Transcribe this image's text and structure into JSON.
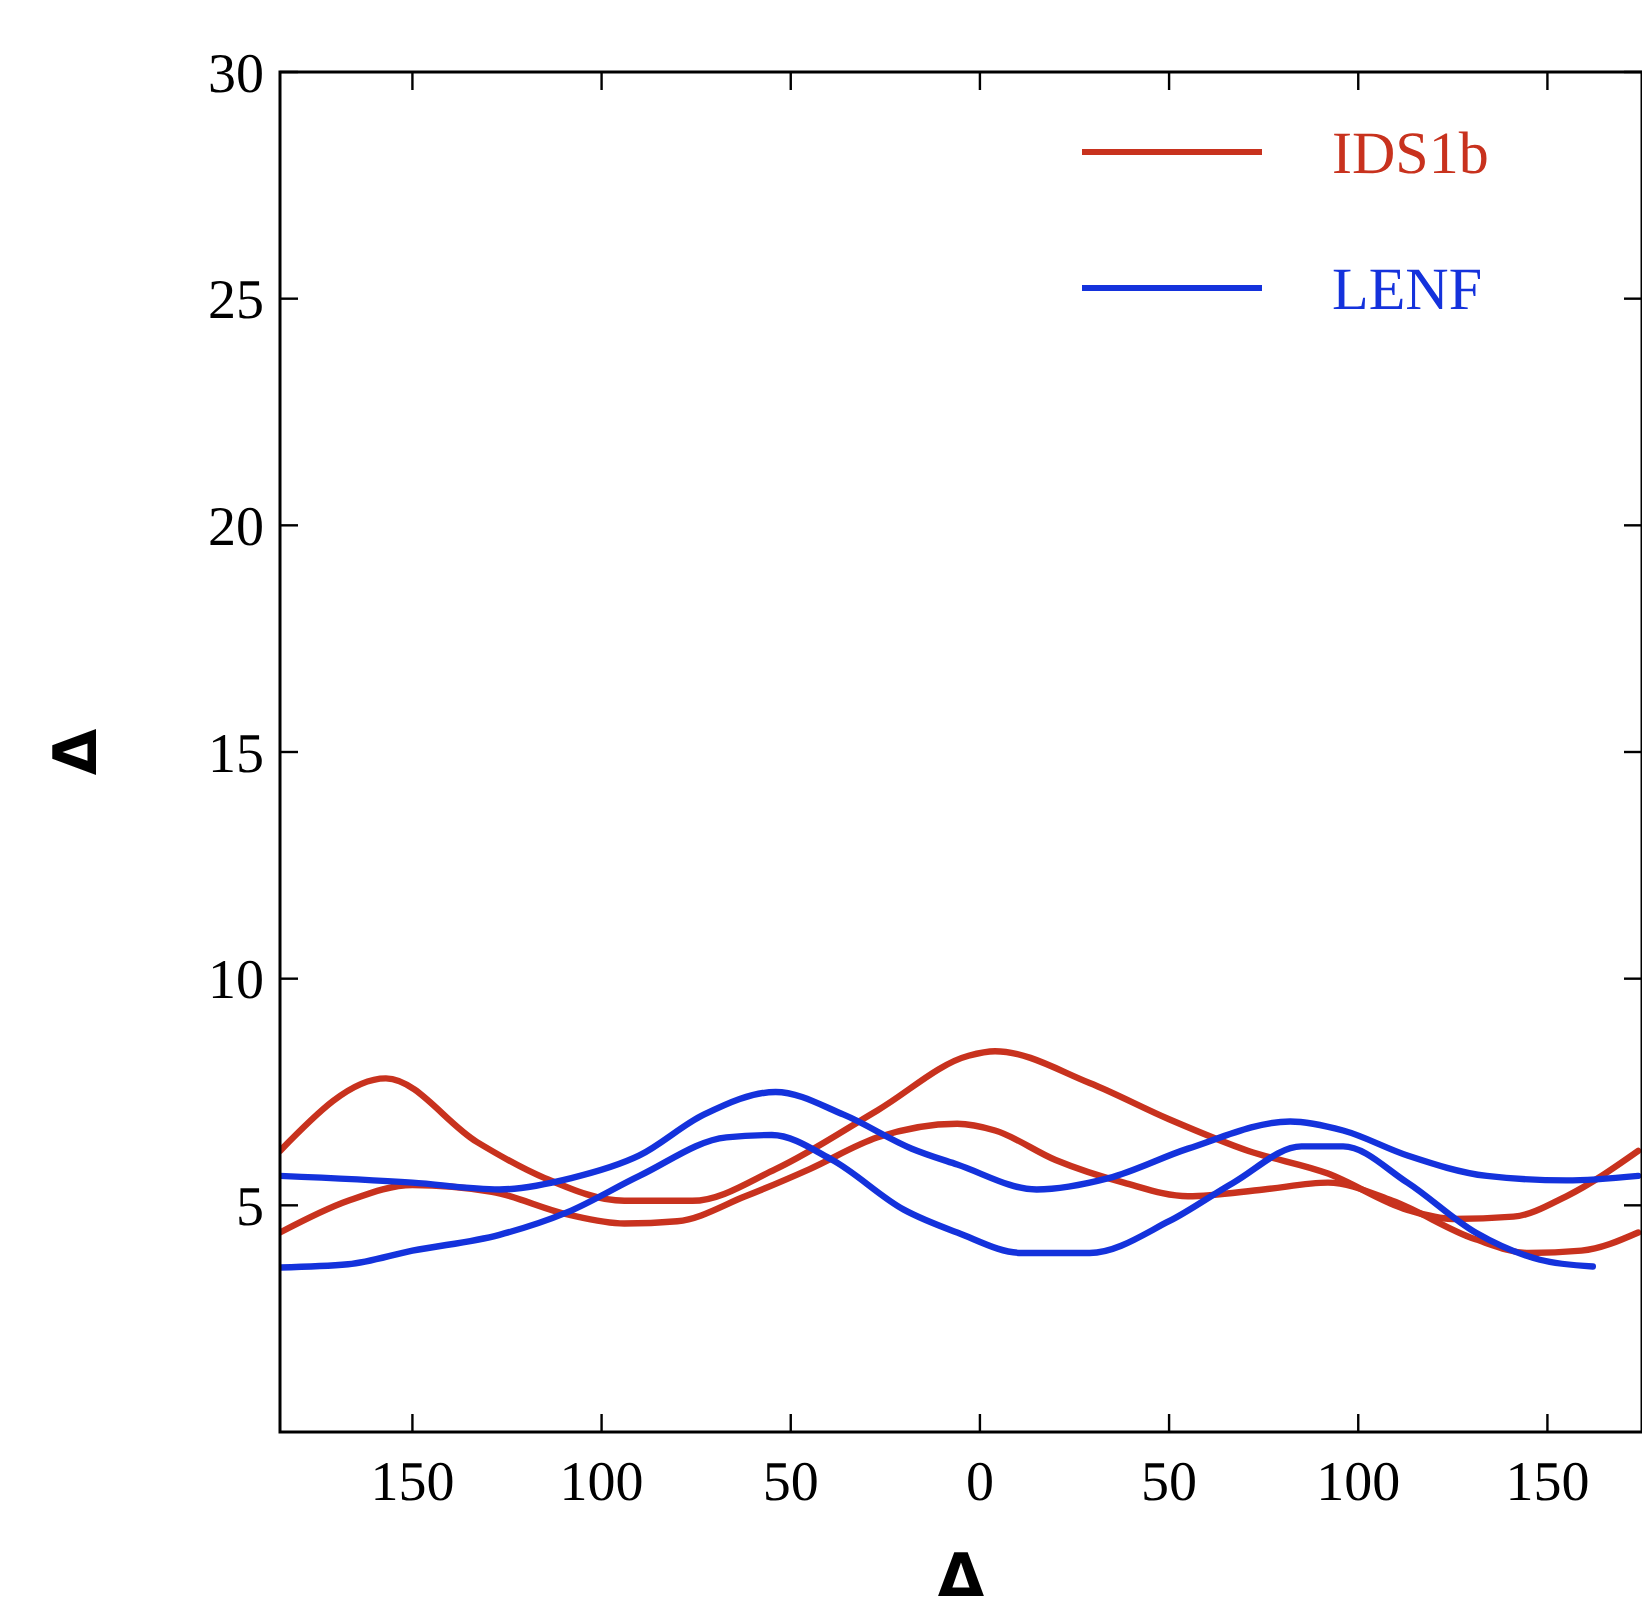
{
  "chart_data": {
    "type": "line",
    "xlabel": "Δ",
    "ylabel": "Δ",
    "xlim": [
      -185,
      175
    ],
    "ylim": [
      0,
      30
    ],
    "xticks": [
      {
        "value": -150,
        "label": "150"
      },
      {
        "value": -100,
        "label": "100"
      },
      {
        "value": -50,
        "label": "50"
      },
      0,
      50,
      100,
      150
    ],
    "yticks": [
      5,
      10,
      15,
      20,
      25,
      30
    ],
    "legend": "top right",
    "grid": false,
    "series": [
      {
        "name": "IDS1b",
        "color": "#c8321e",
        "x": [
          -185,
          -157,
          -133,
          -115,
          -94,
          -76,
          -54,
          -27,
          -3,
          4,
          29,
          50,
          71,
          92,
          113,
          125,
          141,
          155,
          174
        ],
        "values": [
          6.2,
          7.8,
          6.4,
          5.6,
          5.1,
          5.1,
          5.8,
          7.1,
          8.3,
          8.4,
          7.7,
          6.9,
          6.2,
          5.7,
          4.9,
          4.7,
          4.75,
          5.2,
          6.2
        ]
      },
      {
        "color": "#c8321e",
        "x": [
          -185,
          -167,
          -150,
          -129,
          -109,
          -94,
          -80,
          -62,
          -45,
          -27,
          -6,
          4,
          20,
          38,
          55,
          75,
          92,
          109,
          131,
          145,
          159,
          174
        ],
        "values": [
          4.4,
          5.1,
          5.45,
          5.3,
          4.8,
          4.6,
          4.65,
          5.2,
          5.8,
          6.5,
          6.8,
          6.65,
          6.0,
          5.5,
          5.2,
          5.35,
          5.5,
          5.1,
          4.25,
          3.95,
          4.0,
          4.4
        ]
      },
      {
        "name": "LENF",
        "color": "#1432dc",
        "x": [
          -185,
          -150,
          -127,
          -108,
          -90,
          -73,
          -54,
          -36,
          -18,
          -6,
          15,
          34,
          55,
          82,
          96,
          113,
          134,
          155,
          174
        ],
        "values": [
          5.65,
          5.5,
          5.35,
          5.6,
          6.1,
          7.0,
          7.5,
          7.0,
          6.25,
          5.9,
          5.35,
          5.6,
          6.25,
          6.85,
          6.65,
          6.1,
          5.65,
          5.55,
          5.65
        ]
      },
      {
        "color": "#1432dc",
        "x": [
          -185,
          -167,
          -150,
          -127,
          -109,
          -90,
          -67,
          -55,
          -39,
          -20,
          -6,
          11,
          29,
          50,
          67,
          85,
          96,
          113,
          131,
          148,
          162
        ],
        "values": [
          3.63,
          3.7,
          4.0,
          4.35,
          4.85,
          5.65,
          6.5,
          6.55,
          6.0,
          4.9,
          4.4,
          3.95,
          3.95,
          4.65,
          5.5,
          6.3,
          6.3,
          5.5,
          4.4,
          3.8,
          3.65
        ]
      }
    ]
  }
}
